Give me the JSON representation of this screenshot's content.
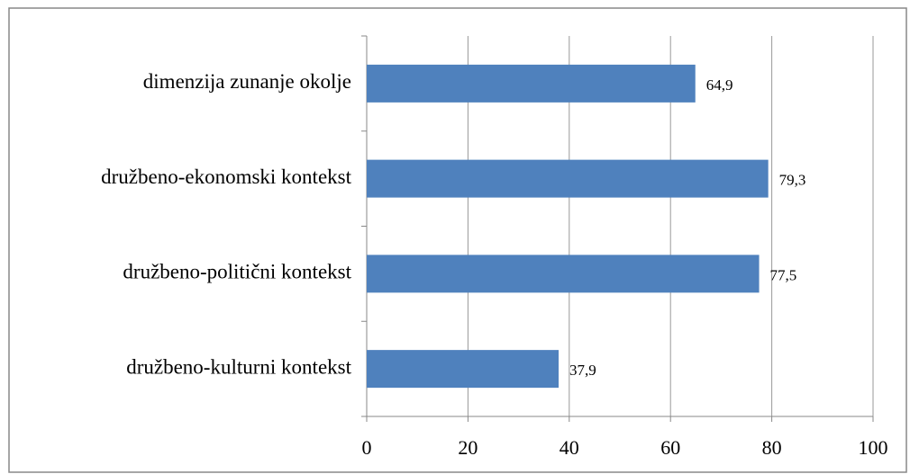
{
  "chart_data": {
    "type": "bar",
    "orientation": "horizontal",
    "categories": [
      "dimenzija zunanje okolje",
      "družbeno-ekonomski kontekst",
      "družbeno-politični kontekst",
      "družbeno-kulturni kontekst"
    ],
    "values": [
      64.9,
      79.3,
      77.5,
      37.9
    ],
    "value_labels": [
      "64,9",
      "79,3",
      "77,5",
      "37,9"
    ],
    "color": "#4f81bd",
    "xlim": [
      0,
      100
    ],
    "xticks": [
      0,
      20,
      40,
      60,
      80,
      100
    ],
    "grid": true
  }
}
